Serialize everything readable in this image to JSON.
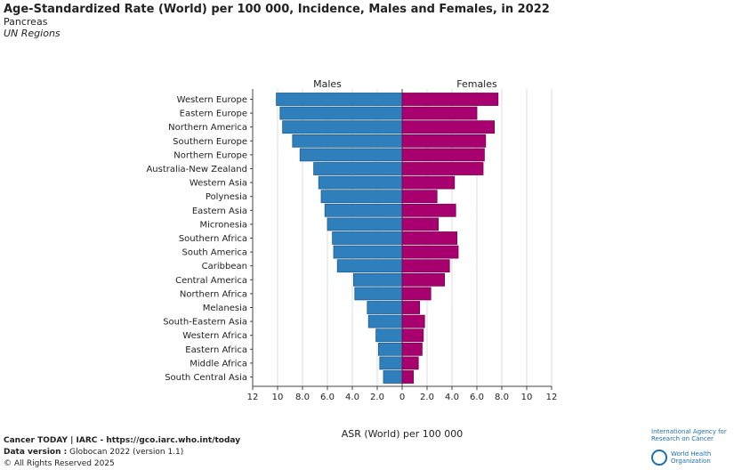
{
  "title": "Age-Standardized Rate (World) per 100 000, Incidence, Males and Females, in 2022",
  "subtitle": "Pancreas",
  "subtitle2": "UN Regions",
  "footer": {
    "line1": "Cancer TODAY | IARC - https://gco.iarc.who.int/today",
    "line2_label": "Data version :",
    "line2_value": "Globocan 2022 (version 1.1)",
    "line3": "© All Rights Reserved 2025"
  },
  "logos": {
    "iarc": "International Agency for Research on Cancer",
    "who": "World Health Organization"
  },
  "chart_data": {
    "type": "bar",
    "orientation": "horizontal-butterfly",
    "xlabel": "ASR (World) per 100 000",
    "xlim": [
      0,
      12
    ],
    "ticks": [
      "0",
      "2.0",
      "4.0",
      "6.0",
      "8.0",
      "10",
      "12"
    ],
    "grid": true,
    "categories": [
      "Western Europe",
      "Eastern Europe",
      "Northern America",
      "Southern Europe",
      "Northern Europe",
      "Australia-New Zealand",
      "Western Asia",
      "Polynesia",
      "Eastern Asia",
      "Micronesia",
      "Southern Africa",
      "South America",
      "Caribbean",
      "Central America",
      "Northern Africa",
      "Melanesia",
      "South-Eastern Asia",
      "Western Africa",
      "Eastern Africa",
      "Middle Africa",
      "South Central Asia"
    ],
    "series": [
      {
        "name": "Males",
        "color": "#2e7fbb",
        "values": [
          10.1,
          9.8,
          9.6,
          8.8,
          8.2,
          7.1,
          6.7,
          6.5,
          6.2,
          6.0,
          5.6,
          5.5,
          5.2,
          3.9,
          3.8,
          2.8,
          2.7,
          2.1,
          1.9,
          1.8,
          1.5
        ]
      },
      {
        "name": "Females",
        "color": "#a8006e",
        "values": [
          7.7,
          6.0,
          7.4,
          6.7,
          6.6,
          6.5,
          4.2,
          2.8,
          4.3,
          2.9,
          4.4,
          4.5,
          3.8,
          3.4,
          2.3,
          1.4,
          1.8,
          1.7,
          1.6,
          1.3,
          0.9
        ]
      }
    ]
  }
}
